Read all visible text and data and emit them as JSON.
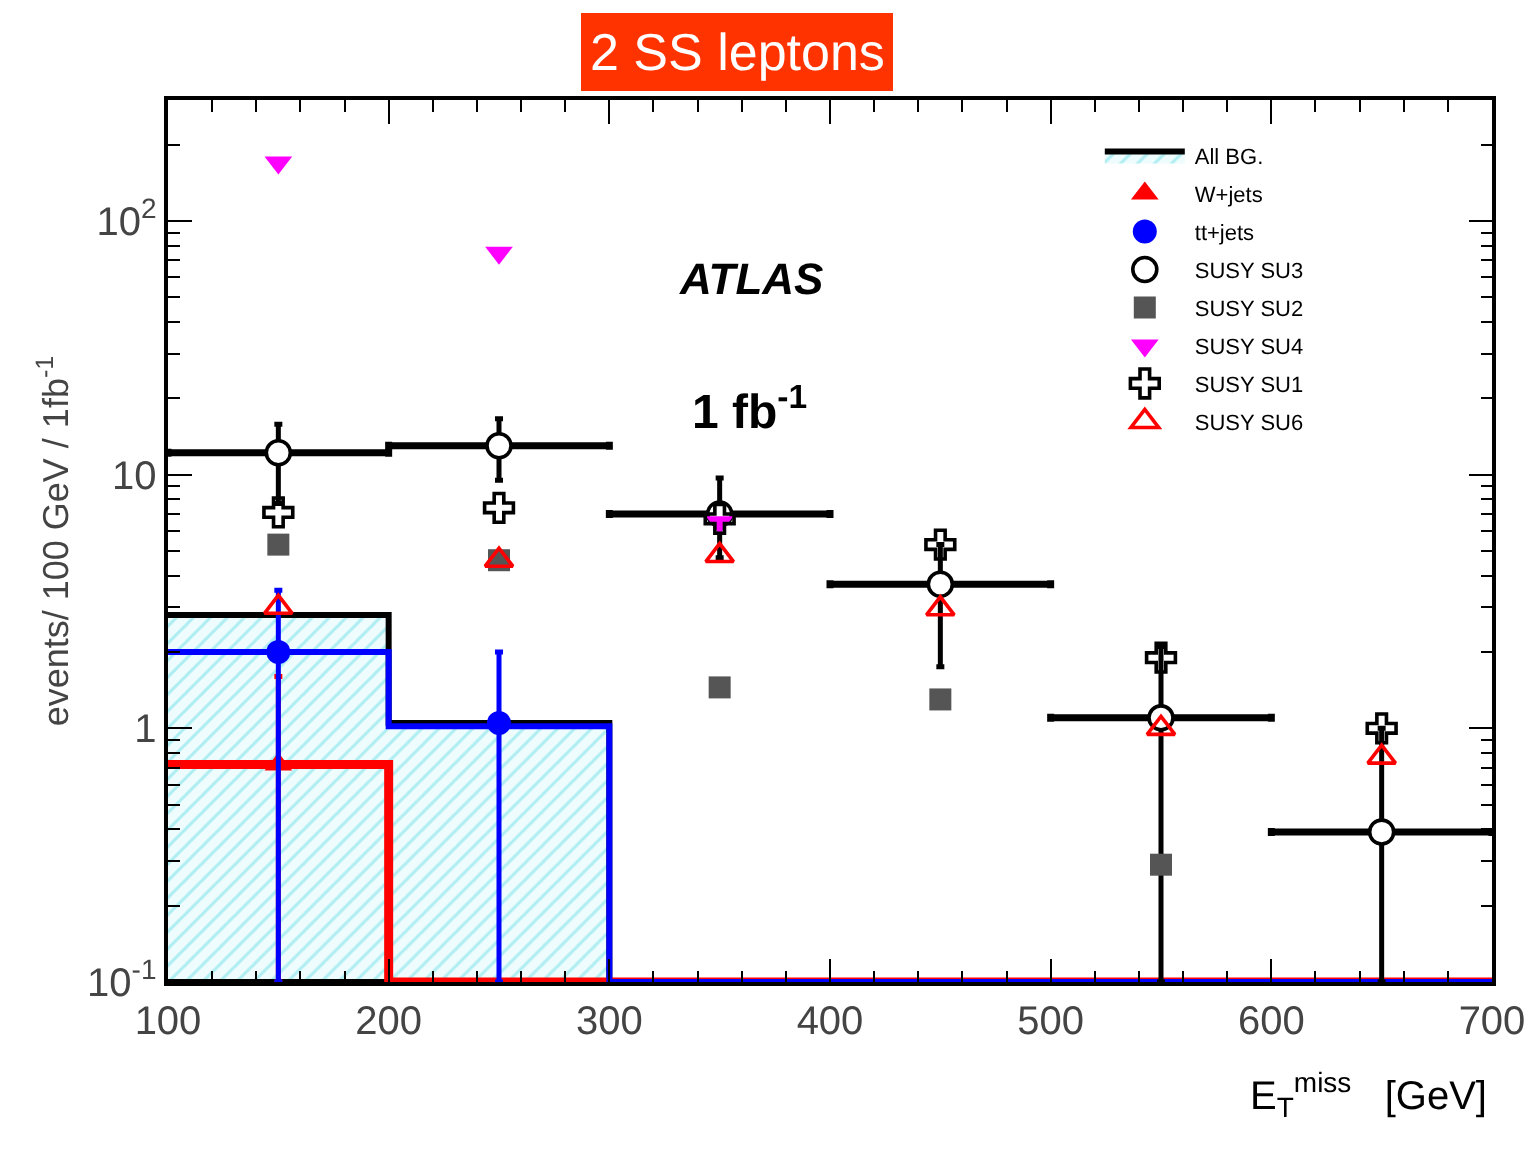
{
  "chart_data": {
    "type": "scatter",
    "title": "2 SS leptons",
    "xlabel": "E$_{T}$$^{miss}$   [GeV]",
    "ylabel": "events/ 100 GeV / 1fb$^{-1}$",
    "annotations": [
      "ATLAS",
      "1 fb$^{-1}$"
    ],
    "xlim": [
      100,
      700
    ],
    "xticks": [
      100,
      200,
      300,
      400,
      500,
      600,
      700
    ],
    "ylim": [
      0.1,
      300
    ],
    "yticks": [
      {
        "value": 0.1,
        "label": "10$^{-1}$"
      },
      1,
      10,
      {
        "value": 100,
        "label": "10$^{2}$"
      }
    ],
    "log": "y",
    "grid": false,
    "legend": "top right",
    "series": [
      {
        "name": "All BG.",
        "type": "area",
        "color": "#000000",
        "x": [
          100,
          200,
          300,
          400,
          500,
          600,
          700
        ],
        "values": [
          2.8,
          1.05,
          0.1,
          0.1,
          0.1,
          0.1,
          0.1
        ]
      },
      {
        "type": "step",
        "color": "#ff0000",
        "x": [
          100,
          200,
          300,
          400,
          500,
          600,
          700
        ],
        "values": [
          0.72,
          0.1,
          0.1,
          0.1,
          0.1,
          0.1,
          0.1
        ]
      },
      {
        "type": "step",
        "color": "#0000ff",
        "x": [
          100,
          200,
          300,
          400,
          500,
          600,
          700
        ],
        "values": [
          2.0,
          1.02,
          0.1,
          0.1,
          0.1,
          0.1,
          0.1
        ]
      },
      {
        "name": "W+jets",
        "color": "#ff0000",
        "marker": "triangle-up",
        "x": [
          150
        ],
        "values": [
          0.72
        ],
        "errors": [
          [
            0.1,
            1.6
          ]
        ]
      },
      {
        "name": "tt+jets",
        "color": "#0000ff",
        "marker": "circle",
        "x": [
          150,
          250
        ],
        "values": [
          2.0,
          1.05
        ],
        "errors": [
          [
            0.1,
            3.5
          ],
          [
            0.1,
            2.0
          ]
        ]
      },
      {
        "name": "SUSY SU3",
        "color": "#000000",
        "marker": "circle-open",
        "x": [
          150,
          250,
          350,
          450,
          550,
          650
        ],
        "values": [
          12.2,
          13,
          7.0,
          3.7,
          1.1,
          0.39
        ],
        "errors": [
          [
            7.7,
            15.8
          ],
          [
            9.5,
            16.6
          ],
          [
            4.7,
            9.7
          ],
          [
            1.75,
            5.3
          ],
          [
            0.1,
            2.1
          ],
          [
            0.1,
            1.0
          ]
        ],
        "xerrors": [
          50,
          50,
          50,
          50,
          50,
          50
        ]
      },
      {
        "name": "SUSY SU2",
        "color": "#555555",
        "marker": "square",
        "x": [
          150,
          250,
          350,
          450,
          550
        ],
        "values": [
          5.3,
          4.6,
          1.45,
          1.3,
          0.29
        ]
      },
      {
        "name": "SUSY SU4",
        "color": "#ff00ff",
        "marker": "triangle-down",
        "x": [
          150,
          250,
          350
        ],
        "values": [
          170,
          75,
          6.5
        ]
      },
      {
        "name": "SUSY SU1",
        "color": "#000000",
        "marker": "cross-open",
        "x": [
          150,
          250,
          350,
          450,
          550,
          650
        ],
        "values": [
          7.1,
          7.4,
          6.7,
          5.3,
          1.9,
          1.0
        ]
      },
      {
        "name": "SUSY SU6",
        "color": "#ff0000",
        "marker": "triangle-up-open",
        "x": [
          150,
          250,
          350,
          450,
          550,
          650
        ],
        "values": [
          3.0,
          4.6,
          4.8,
          2.96,
          1.0,
          0.77
        ]
      }
    ]
  }
}
